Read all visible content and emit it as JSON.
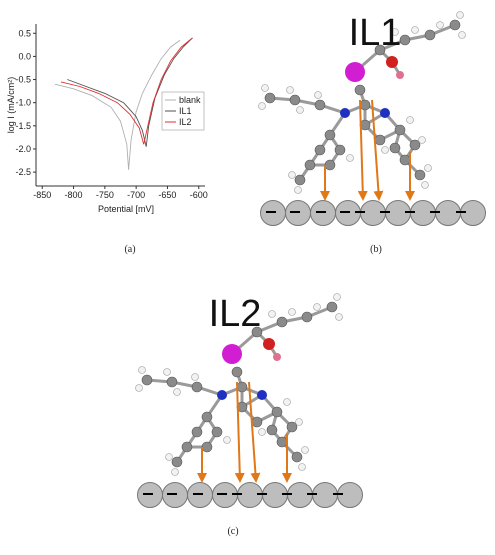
{
  "chart_data": {
    "type": "line",
    "x_label": "Potential [mV]",
    "y_label": "log I (mA/cm²)",
    "xlim": [
      -860,
      -590
    ],
    "ylim": [
      -2.8,
      0.7
    ],
    "xticks": [
      -850,
      -800,
      -750,
      -700,
      -650,
      -600
    ],
    "yticks": [
      0.5,
      {
        "value": 0,
        "label": "0.0"
      },
      -0.5,
      {
        "value": -1,
        "label": "-1.0"
      },
      -1.5,
      {
        "value": -2,
        "label": "-2.0"
      },
      -2.5
    ],
    "legend": "center right",
    "series": [
      {
        "name": "blank",
        "color": "#b0b0b0",
        "x": [
          -830,
          -800,
          -770,
          -740,
          -725,
          -715,
          -712,
          -708,
          -700,
          -690,
          -675,
          -660,
          -645,
          -630
        ],
        "values": [
          -0.6,
          -0.7,
          -0.85,
          -1.1,
          -1.4,
          -1.9,
          -2.45,
          -1.8,
          -1.2,
          -0.8,
          -0.4,
          -0.05,
          0.2,
          0.35
        ]
      },
      {
        "name": "IL1",
        "color": "#505050",
        "x": [
          -810,
          -780,
          -750,
          -720,
          -700,
          -690,
          -684,
          -680,
          -670,
          -655,
          -640,
          -625,
          -610
        ],
        "values": [
          -0.5,
          -0.65,
          -0.8,
          -1.0,
          -1.3,
          -1.6,
          -1.95,
          -1.5,
          -0.9,
          -0.4,
          -0.05,
          0.2,
          0.4
        ]
      },
      {
        "name": "IL2",
        "color": "#e03030",
        "x": [
          -820,
          -790,
          -760,
          -730,
          -710,
          -695,
          -688,
          -683,
          -673,
          -660,
          -645,
          -628,
          -610
        ],
        "values": [
          -0.55,
          -0.65,
          -0.8,
          -1.0,
          -1.25,
          -1.55,
          -1.9,
          -1.6,
          -1.0,
          -0.5,
          -0.1,
          0.2,
          0.4
        ]
      }
    ]
  },
  "panels": {
    "a": "(a)",
    "b": "(b)",
    "c": "(c)"
  },
  "molecules": [
    "IL1",
    "IL2"
  ]
}
